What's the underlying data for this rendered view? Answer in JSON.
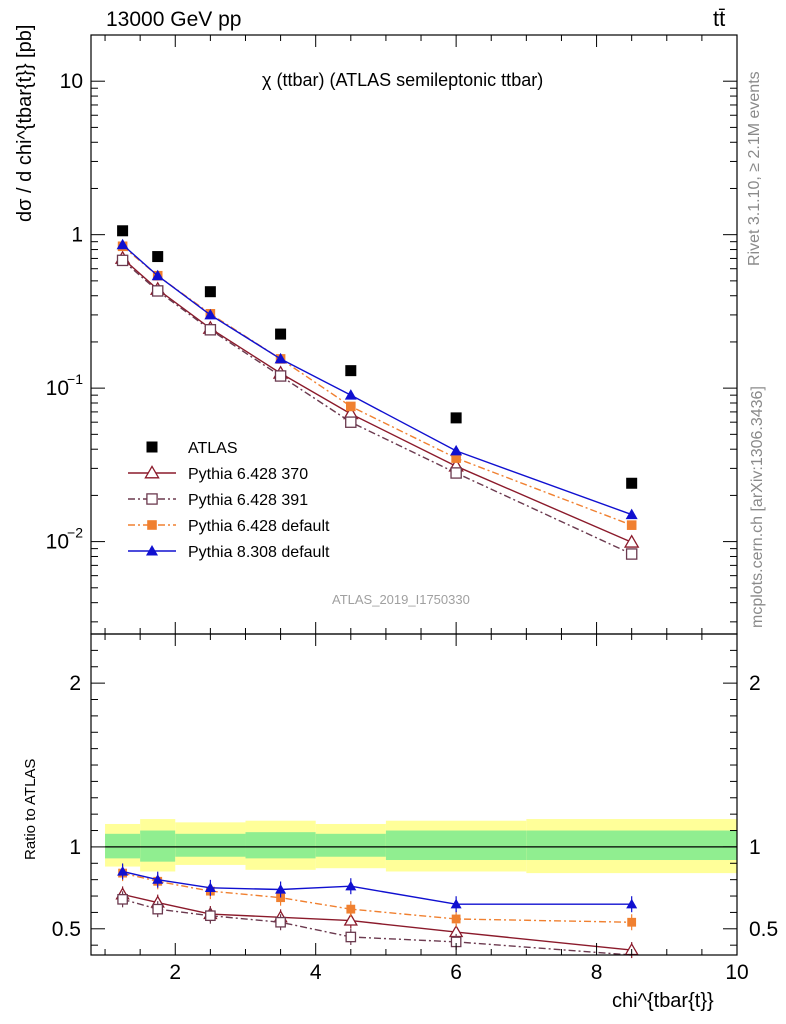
{
  "header": {
    "energy_label": "13000 GeV pp",
    "process_label": "tt̄"
  },
  "side_labels": {
    "rivet": "Rivet 3.1.10, ≥ 2.1M events",
    "mcplots": "mcplots.cern.ch [arXiv:1306.3436]"
  },
  "chart_data": [
    {
      "type": "line",
      "title": "χ (ttbar) (ATLAS semileptonic ttbar)",
      "xlabel": "chi^{tbar{t}}",
      "ylabel": "dσ / d chi^{tbar{t}} [pb]",
      "yscale": "log",
      "xlim": [
        0.8,
        10
      ],
      "ylim": [
        0.0025,
        20
      ],
      "ytick_labels": [
        "10^-2",
        "10^-1",
        "1",
        "10"
      ],
      "watermark": "ATLAS_2019_I1750330",
      "legend_position": "lower-left",
      "x": [
        1.25,
        1.75,
        2.5,
        3.5,
        4.5,
        6.0,
        8.5
      ],
      "series": [
        {
          "name": "ATLAS",
          "color": "#000000",
          "marker": "square",
          "values": [
            1.06,
            0.72,
            0.425,
            0.225,
            0.13,
            0.064,
            0.024
          ]
        },
        {
          "name": "Pythia 6.428 370",
          "color": "#8b1a2b",
          "marker": "open-triangle",
          "line": "solid",
          "values": [
            0.7,
            0.44,
            0.245,
            0.125,
            0.068,
            0.031,
            0.0099
          ]
        },
        {
          "name": "Pythia 6.428 391",
          "color": "#6b3a4f",
          "marker": "open-square",
          "line": "dashdot",
          "values": [
            0.68,
            0.43,
            0.24,
            0.12,
            0.06,
            0.028,
            0.0083
          ]
        },
        {
          "name": "Pythia 6.428 default",
          "color": "#f08030",
          "marker": "filled-square",
          "line": "dashdot",
          "values": [
            0.84,
            0.54,
            0.305,
            0.155,
            0.076,
            0.035,
            0.0128
          ]
        },
        {
          "name": "Pythia 8.308 default",
          "color": "#1010d0",
          "marker": "filled-triangle",
          "line": "solid",
          "values": [
            0.86,
            0.54,
            0.3,
            0.155,
            0.09,
            0.039,
            0.015
          ]
        }
      ]
    },
    {
      "type": "line",
      "ylabel": "Ratio to ATLAS",
      "xlabel": "chi^{tbar{t}}",
      "xlim": [
        0.8,
        10
      ],
      "ylim": [
        0.34,
        2.3
      ],
      "xtick_labels": [
        "2",
        "4",
        "6",
        "8",
        "10"
      ],
      "ytick_labels": [
        "0.5",
        "1",
        "2"
      ],
      "uncertainty_bands": {
        "edges": [
          1.0,
          1.5,
          2.0,
          3.0,
          4.0,
          5.0,
          7.0,
          10.0
        ],
        "inner": [
          [
            0.93,
            1.08
          ],
          [
            0.91,
            1.1
          ],
          [
            0.94,
            1.08
          ],
          [
            0.93,
            1.09
          ],
          [
            0.94,
            1.08
          ],
          [
            0.92,
            1.1
          ],
          [
            0.92,
            1.1
          ]
        ],
        "outer": [
          [
            0.88,
            1.14
          ],
          [
            0.85,
            1.17
          ],
          [
            0.89,
            1.15
          ],
          [
            0.86,
            1.16
          ],
          [
            0.87,
            1.14
          ],
          [
            0.85,
            1.16
          ],
          [
            0.84,
            1.17
          ]
        ],
        "inner_color": "#90ee90",
        "outer_color": "#ffff99"
      },
      "x": [
        1.25,
        1.75,
        2.5,
        3.5,
        4.5,
        6.0,
        8.5
      ],
      "series": [
        {
          "name": "Pythia 6.428 370",
          "color": "#8b1a2b",
          "values": [
            0.71,
            0.66,
            0.59,
            0.57,
            0.55,
            0.48,
            0.37
          ]
        },
        {
          "name": "Pythia 6.428 391",
          "color": "#6b3a4f",
          "values": [
            0.68,
            0.62,
            0.58,
            0.54,
            0.45,
            0.42,
            0.33
          ]
        },
        {
          "name": "Pythia 6.428 default",
          "color": "#f08030",
          "values": [
            0.84,
            0.79,
            0.73,
            0.69,
            0.62,
            0.56,
            0.54
          ]
        },
        {
          "name": "Pythia 8.308 default",
          "color": "#1010d0",
          "values": [
            0.85,
            0.8,
            0.75,
            0.74,
            0.76,
            0.65,
            0.65
          ]
        }
      ]
    }
  ]
}
